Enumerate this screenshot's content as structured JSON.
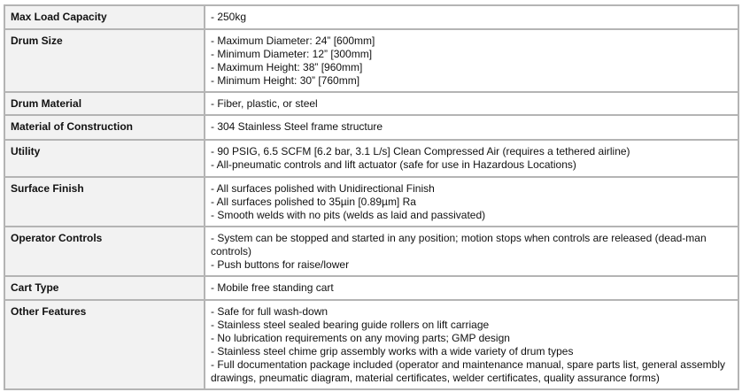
{
  "rows": [
    {
      "label": "Max Load Capacity",
      "lines": [
        "- 250kg"
      ]
    },
    {
      "label": "Drum Size",
      "lines": [
        "- Maximum Diameter: 24” [600mm]",
        "- Minimum Diameter: 12” [300mm]",
        "- Maximum Height: 38” [960mm]",
        "- Minimum Height: 30” [760mm]"
      ]
    },
    {
      "label": "Drum Material",
      "lines": [
        "- Fiber, plastic, or steel"
      ]
    },
    {
      "label": "Material of Construction",
      "lines": [
        "- 304 Stainless Steel frame structure"
      ]
    },
    {
      "label": "Utility",
      "lines": [
        "- 90 PSIG, 6.5 SCFM [6.2 bar, 3.1 L/s] Clean Compressed Air (requires a tethered airline)",
        "- All-pneumatic controls and lift actuator (safe for use in Hazardous Locations)"
      ]
    },
    {
      "label": "Surface Finish",
      "lines": [
        "- All surfaces polished with Unidirectional Finish",
        "- All surfaces polished to 35µin [0.89µm] Ra",
        "- Smooth welds with no pits (welds as laid and passivated)"
      ]
    },
    {
      "label": "Operator Controls",
      "lines": [
        "- System can be stopped and started in any position; motion stops when controls are released (dead-man controls)",
        "- Push buttons for raise/lower"
      ]
    },
    {
      "label": "Cart Type",
      "lines": [
        "- Mobile free standing cart"
      ]
    },
    {
      "label": "Other Features",
      "lines": [
        "- Safe for full wash-down",
        "- Stainless steel sealed bearing guide rollers on lift carriage",
        "- No lubrication requirements on any moving parts; GMP design",
        "- Stainless steel chime grip assembly works with a wide variety of drum types",
        "- Full documentation package included (operator and maintenance manual, spare parts list, general assembly drawings, pneumatic diagram, material certificates, welder certificates, quality assurance forms)"
      ]
    }
  ]
}
